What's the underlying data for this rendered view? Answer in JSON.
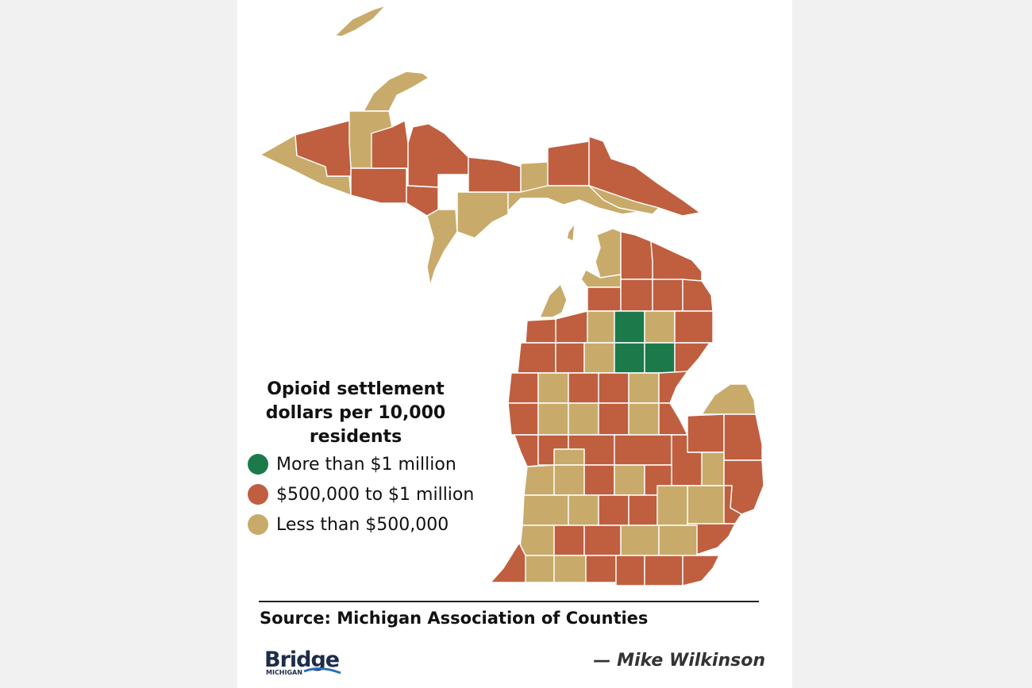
{
  "legend": {
    "title_line1": "Opioid settlement",
    "title_line2": "dollars per 10,000",
    "title_line3": "residents",
    "items": [
      {
        "label": "More than $1 million",
        "color": "#1c7a4a",
        "category": "high"
      },
      {
        "label": "$500,000 to $1 million",
        "color": "#bf5f40",
        "category": "mid"
      },
      {
        "label": "Less than $500,000",
        "color": "#c8ab6b",
        "category": "low"
      }
    ]
  },
  "colors": {
    "high": "#1c7a4a",
    "mid": "#bf5f40",
    "low": "#c8ab6b",
    "border": "#ffffff",
    "background": "#f1f1f1"
  },
  "footer": {
    "source": "Source: Michigan Association of Counties",
    "logo_word": "Bridge",
    "logo_sub": "MICHIGAN",
    "byline": "— Mike Wilkinson"
  }
}
